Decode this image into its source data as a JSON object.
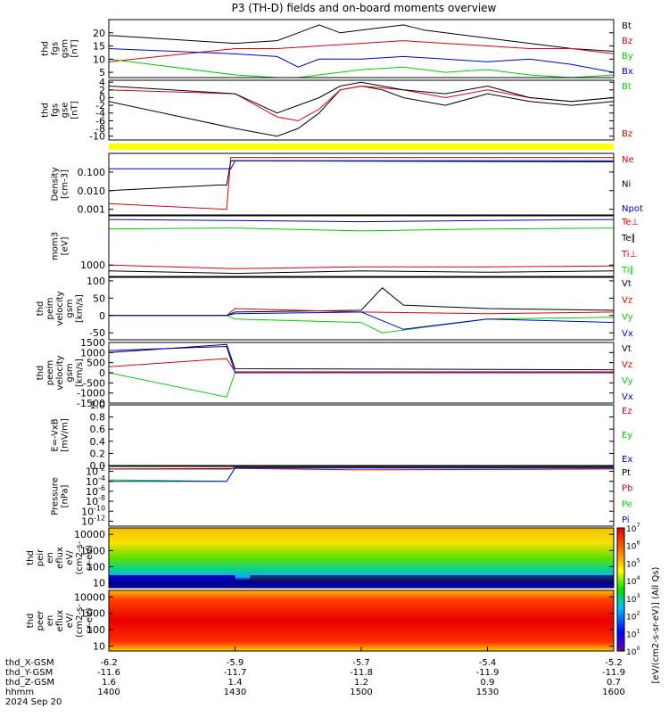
{
  "title": "P3 (TH-D) fields and on-board moments overview",
  "colors": {
    "black": "#000000",
    "red": "#e00000",
    "green": "#00d000",
    "blue": "#0000d0",
    "flag_bar": "#ffff00"
  },
  "chart_data": {
    "type": "line",
    "x_axis": {
      "ticks": [
        "1400",
        "1430",
        "1500",
        "1530",
        "1600"
      ],
      "x_minutes_range": [
        840,
        960
      ],
      "ephemeris_labels": [
        "thd_X-GSM",
        "thd_Y-GSM",
        "thd_Z-GSM",
        "hhmm",
        "2024 Sep 20"
      ],
      "ephemeris_rows": [
        [
          "-6.2",
          "-5.9",
          "-5.7",
          "-5.4",
          "-5.2"
        ],
        [
          "-11.6",
          "-11.7",
          "-11.8",
          "-11.9",
          "-11.9"
        ],
        [
          "1.6",
          "1.4",
          "1.2",
          "0.9",
          "0.7"
        ],
        [
          "1400",
          "1430",
          "1500",
          "1530",
          "1600"
        ]
      ]
    },
    "panels": [
      {
        "id": "fgs_gsm",
        "ylabel": [
          "thd",
          "fgs",
          "gsm",
          "[nT]"
        ],
        "yticks": [
          "5",
          "10",
          "15",
          "20"
        ],
        "ylim": [
          3,
          25
        ],
        "legend": [
          {
            "name": "Bt",
            "color": "#000000"
          },
          {
            "name": "Bz",
            "color": "#e00000"
          },
          {
            "name": "By",
            "color": "#00d000"
          },
          {
            "name": "Bx",
            "color": "#0000d0"
          }
        ],
        "series": [
          {
            "name": "Bt",
            "x": [
              "1400",
              "1430",
              "1440",
              "1445",
              "1450",
              "1455",
              "1500",
              "1505",
              "1510",
              "1515",
              "1520",
              "1525",
              "1530",
              "1540",
              "1550",
              "1600"
            ],
            "values": [
              19,
              16,
              17,
              20,
              23,
              20,
              21,
              22,
              23,
              21,
              20,
              19,
              18,
              16,
              14,
              13
            ]
          },
          {
            "name": "Bz",
            "x": [
              "1400",
              "1430",
              "1440",
              "1450",
              "1500",
              "1510",
              "1520",
              "1530",
              "1540",
              "1550",
              "1600"
            ],
            "values": [
              9,
              14,
              14,
              15,
              16,
              17,
              16,
              15,
              14,
              14,
              12
            ]
          },
          {
            "name": "By",
            "x": [
              "1400",
              "1430",
              "1440",
              "1445",
              "1450",
              "1500",
              "1510",
              "1520",
              "1530",
              "1540",
              "1550",
              "1600"
            ],
            "values": [
              10,
              4,
              3,
              2,
              4,
              6,
              7,
              5,
              6,
              4,
              3,
              4
            ]
          },
          {
            "name": "Bx",
            "x": [
              "1400",
              "1430",
              "1440",
              "1445",
              "1450",
              "1500",
              "1510",
              "1520",
              "1530",
              "1540",
              "1550",
              "1600"
            ],
            "values": [
              14,
              12,
              11,
              7,
              10,
              10,
              11,
              10,
              9,
              10,
              8,
              5
            ]
          }
        ]
      },
      {
        "id": "fgs_gse",
        "ylabel": [
          "thd",
          "fgs",
          "gse",
          "[nT]"
        ],
        "yticks": [
          "-10",
          "-8",
          "-6",
          "-4",
          "-2",
          "0",
          "2",
          "4"
        ],
        "ylim": [
          -11,
          4.5
        ],
        "legend": [
          {
            "name": "Bt",
            "color": "#00d000"
          },
          {
            "name": "Bz",
            "color": "#e00000"
          }
        ],
        "series": [
          {
            "name": "Bt",
            "x": [
              "1400",
              "1430",
              "1440",
              "1445",
              "1450",
              "1455",
              "1500",
              "1505",
              "1510",
              "1520",
              "1530",
              "1540",
              "1550",
              "1600"
            ],
            "values": [
              -1,
              -8,
              -10,
              -8,
              -4,
              2,
              3,
              2,
              0,
              -2,
              1,
              -1,
              -2,
              -1
            ]
          },
          {
            "name": "Bz",
            "x": [
              "1400",
              "1430",
              "1440",
              "1445",
              "1450",
              "1455",
              "1500",
              "1510",
              "1520",
              "1530",
              "1540",
              "1550",
              "1600"
            ],
            "values": [
              2,
              1,
              -5,
              -6,
              -3,
              2,
              3,
              2,
              0,
              2,
              0,
              -1,
              0
            ]
          },
          {
            "name": "black",
            "x": [
              "1400",
              "1430",
              "1440",
              "1445",
              "1450",
              "1455",
              "1500",
              "1510",
              "1520",
              "1530",
              "1540",
              "1550",
              "1600"
            ],
            "values": [
              3,
              1,
              -4,
              -2,
              0,
              3,
              4,
              2,
              1,
              3,
              0,
              -1,
              0
            ]
          }
        ]
      },
      {
        "id": "density",
        "ylabel": [
          "Density",
          "[cm-3]"
        ],
        "yticks": [
          "0.001",
          "0.010",
          "0.100"
        ],
        "yscale": "log",
        "ylim": [
          0.0005,
          1.0
        ],
        "legend": [
          {
            "name": "Ne",
            "color": "#e00000"
          },
          {
            "name": "Ni",
            "color": "#000000"
          },
          {
            "name": "Npot",
            "color": "#0000d0"
          }
        ],
        "series": [
          {
            "name": "Ne",
            "x": [
              "1400",
              "1428",
              "1429",
              "1600"
            ],
            "values": [
              0.002,
              0.001,
              0.6,
              0.6
            ]
          },
          {
            "name": "Ni",
            "x": [
              "1400",
              "1426",
              "1428",
              "1429",
              "1600"
            ],
            "values": [
              0.01,
              0.02,
              0.02,
              0.4,
              0.35
            ]
          },
          {
            "name": "Npot",
            "x": [
              "1400",
              "1429",
              "1430",
              "1600"
            ],
            "values": [
              0.15,
              0.15,
              0.4,
              0.4
            ]
          }
        ]
      },
      {
        "id": "temperature",
        "ylabel": [
          "mom3",
          "[eV]"
        ],
        "yticks": [
          "1000"
        ],
        "yscale": "log",
        "ylim": [
          500,
          20000
        ],
        "legend": [
          {
            "name": "Te⊥",
            "color": "#e00000"
          },
          {
            "name": "Te∥",
            "color": "#000000"
          },
          {
            "name": "Ti⊥",
            "color": "#e00000"
          },
          {
            "name": "Ti∥",
            "color": "#00d000"
          }
        ],
        "series": [
          {
            "name": "Ti⊥",
            "x": [
              "1400",
              "1430",
              "1500",
              "1530",
              "1600"
            ],
            "values": [
              16000,
              15000,
              14000,
              15000,
              16000
            ]
          },
          {
            "name": "Ti∥",
            "x": [
              "1400",
              "1430",
              "1500",
              "1530",
              "1600"
            ],
            "values": [
              9000,
              9500,
              8000,
              9000,
              9500
            ]
          },
          {
            "name": "Te⊥",
            "x": [
              "1400",
              "1430",
              "1500",
              "1530",
              "1600"
            ],
            "values": [
              1000,
              800,
              900,
              900,
              950
            ]
          },
          {
            "name": "Te∥",
            "x": [
              "1400",
              "1430",
              "1500",
              "1530",
              "1600"
            ],
            "values": [
              700,
              600,
              700,
              650,
              700
            ]
          }
        ]
      },
      {
        "id": "ion_velocity",
        "ylabel": [
          "thd",
          "peim",
          "velocity",
          "gsm",
          "[km/s]"
        ],
        "yticks": [
          "-50",
          "0",
          "50",
          "100"
        ],
        "ylim": [
          -70,
          110
        ],
        "legend": [
          {
            "name": "Vt",
            "color": "#000000"
          },
          {
            "name": "Vz",
            "color": "#e00000"
          },
          {
            "name": "Vy",
            "color": "#00d000"
          },
          {
            "name": "Vx",
            "color": "#0000d0"
          }
        ],
        "series": [
          {
            "name": "Vt",
            "x": [
              "1400",
              "1428",
              "1430",
              "1500",
              "1505",
              "1510",
              "1530",
              "1600"
            ],
            "values": [
              0,
              0,
              10,
              15,
              80,
              30,
              20,
              15
            ]
          },
          {
            "name": "Vz",
            "x": [
              "1400",
              "1428",
              "1430",
              "1500",
              "1530",
              "1600"
            ],
            "values": [
              0,
              0,
              20,
              10,
              5,
              10
            ]
          },
          {
            "name": "Vy",
            "x": [
              "1400",
              "1428",
              "1430",
              "1500",
              "1505",
              "1530",
              "1600"
            ],
            "values": [
              0,
              0,
              -10,
              -20,
              -50,
              -10,
              -5
            ]
          },
          {
            "name": "Vx",
            "x": [
              "1400",
              "1428",
              "1430",
              "1500",
              "1510",
              "1530",
              "1600"
            ],
            "values": [
              0,
              0,
              5,
              10,
              -40,
              -10,
              -20
            ]
          }
        ]
      },
      {
        "id": "electron_velocity",
        "ylabel": [
          "thd",
          "peem",
          "velocity",
          "gsm",
          "[km/s]"
        ],
        "yticks": [
          "-1500",
          "-1000",
          "-500",
          "0",
          "500",
          "1000",
          "1500"
        ],
        "ylim": [
          -1500,
          1500
        ],
        "legend": [
          {
            "name": "Vt",
            "color": "#000000"
          },
          {
            "name": "Vz",
            "color": "#e00000"
          },
          {
            "name": "Vy",
            "color": "#00d000"
          },
          {
            "name": "Vx",
            "color": "#0000d0"
          }
        ],
        "series": [
          {
            "name": "Vt",
            "x": [
              "1400",
              "1428",
              "1430",
              "1600"
            ],
            "values": [
              1000,
              1400,
              200,
              150
            ]
          },
          {
            "name": "Vz",
            "x": [
              "1400",
              "1428",
              "1430",
              "1600"
            ],
            "values": [
              300,
              700,
              50,
              50
            ]
          },
          {
            "name": "Vy",
            "x": [
              "1400",
              "1428",
              "1430",
              "1600"
            ],
            "values": [
              0,
              -1200,
              0,
              0
            ]
          },
          {
            "name": "Vx",
            "x": [
              "1400",
              "1428",
              "1430",
              "1600"
            ],
            "values": [
              1100,
              1300,
              0,
              0
            ]
          }
        ]
      },
      {
        "id": "efield",
        "ylabel": [
          "E=-VxB",
          "[mV/m]"
        ],
        "yticks": [
          "0.0",
          "0.2",
          "0.4",
          "0.6",
          "0.8",
          "1.0"
        ],
        "ylim": [
          0,
          1
        ],
        "legend": [
          {
            "name": "Ez",
            "color": "#e00000"
          },
          {
            "name": "Ey",
            "color": "#00d000"
          },
          {
            "name": "Ex",
            "color": "#0000d0"
          }
        ],
        "series": []
      },
      {
        "id": "pressure",
        "ylabel": [
          "Pressure",
          "[nPa]"
        ],
        "yticks": [
          "10^-12",
          "10^-10",
          "10^-8",
          "10^-6",
          "10^-4",
          "10^-2"
        ],
        "yscale": "log",
        "ylim": [
          1e-13,
          0.1
        ],
        "legend": [
          {
            "name": "Pt",
            "color": "#000000"
          },
          {
            "name": "Pb",
            "color": "#e00000"
          },
          {
            "name": "Pe",
            "color": "#00d000"
          },
          {
            "name": "Pi",
            "color": "#0000d0"
          }
        ],
        "series": [
          {
            "name": "Pt",
            "x": [
              "1400",
              "1429",
              "1430",
              "1600"
            ],
            "values": [
              0.03,
              0.03,
              0.06,
              0.06
            ]
          },
          {
            "name": "Pb",
            "x": [
              "1400",
              "1430",
              "1500",
              "1600"
            ],
            "values": [
              0.03,
              0.04,
              0.02,
              0.03
            ]
          },
          {
            "name": "Pe",
            "x": [
              "1400",
              "1428",
              "1430",
              "1600"
            ],
            "values": [
              0.0002,
              0.0001,
              0.05,
              0.05
            ]
          },
          {
            "name": "Pi",
            "x": [
              "1400",
              "1428",
              "1430",
              "1600"
            ],
            "values": [
              0.0001,
              0.0001,
              0.05,
              0.05
            ]
          }
        ]
      },
      {
        "id": "ion_spectrogram",
        "ylabel": [
          "thd",
          "peir",
          "en",
          "eflux",
          "eV/",
          "(cm2-s-",
          "sr-eV)"
        ],
        "yticks": [
          "10",
          "100",
          "1000",
          "10000"
        ],
        "yscale": "log",
        "ylim": [
          5,
          25000
        ],
        "type": "heatmap"
      },
      {
        "id": "electron_spectrogram",
        "ylabel": [
          "thd",
          "peer",
          "en",
          "eflux",
          "eV/",
          "(cm2-s-",
          "sr-eV)"
        ],
        "yticks": [
          "10",
          "100",
          "1000",
          "10000"
        ],
        "yscale": "log",
        "ylim": [
          5,
          25000
        ],
        "type": "heatmap"
      }
    ],
    "colorbar": {
      "ticks": [
        "10^0",
        "10^1",
        "10^2",
        "10^3",
        "10^4",
        "10^5",
        "10^6",
        "10^7"
      ],
      "label": "[eV/(cm2-s-sr-eV)] (All Qs)"
    }
  }
}
